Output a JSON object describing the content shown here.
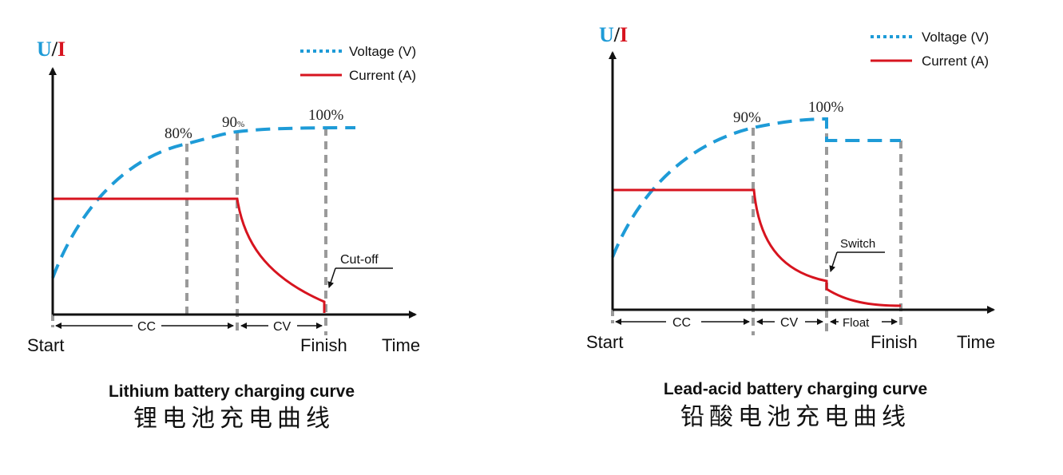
{
  "colors": {
    "voltage": "#1e9bd7",
    "current": "#d7141f",
    "axis": "#111111",
    "guide": "#9a9a9a"
  },
  "legend": {
    "voltage": "Voltage (V)",
    "current": "Current (A)"
  },
  "axis": {
    "u": "U",
    "slash": "/",
    "i": "I",
    "start": "Start",
    "finish": "Finish",
    "time": "Time"
  },
  "lithium": {
    "pct_80": "80%",
    "pct_90_num": "90",
    "pct_90_sign": "%",
    "pct_100": "100%",
    "phase_cc": "CC",
    "phase_cv": "CV",
    "cutoff": "Cut-off",
    "caption_en": "Lithium battery charging curve",
    "caption_zh": "锂电池充电曲线"
  },
  "lead_acid": {
    "pct_90": "90%",
    "pct_100": "100%",
    "phase_cc": "CC",
    "phase_cv": "CV",
    "phase_float": "Float",
    "switch": "Switch",
    "caption_en": "Lead-acid battery charging curve",
    "caption_zh": "铅酸电池充电曲线"
  }
}
